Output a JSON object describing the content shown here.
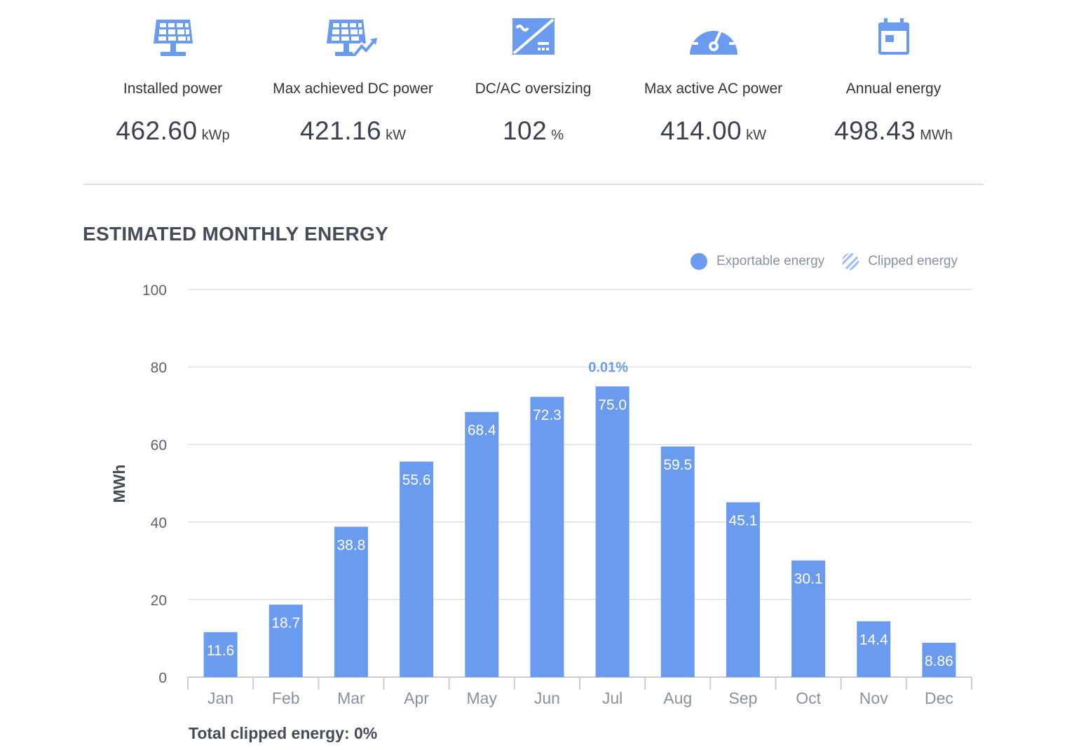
{
  "kpis": [
    {
      "icon": "solar-panel-icon",
      "label": "Installed power",
      "value": "462.60",
      "unit": "kWp"
    },
    {
      "icon": "solar-panel-trend-icon",
      "label": "Max achieved DC power",
      "value": "421.16",
      "unit": "kW"
    },
    {
      "icon": "dc-ac-converter-icon",
      "label": "DC/AC oversizing",
      "value": "102",
      "unit": "%"
    },
    {
      "icon": "gauge-icon",
      "label": "Max active AC power",
      "value": "414.00",
      "unit": "kW"
    },
    {
      "icon": "calendar-icon",
      "label": "Annual energy",
      "value": "498.43",
      "unit": "MWh"
    }
  ],
  "colors": {
    "accent": "#6b9bef",
    "grid": "#dcdfe5",
    "text": "#3c4150",
    "muted": "#8a90a0"
  },
  "chart_data": {
    "type": "bar",
    "title": "ESTIMATED MONTHLY ENERGY",
    "xlabel": "",
    "ylabel": "MWh",
    "ylim": [
      0,
      100
    ],
    "yticks": [
      0,
      20,
      40,
      60,
      80,
      100
    ],
    "grid": true,
    "legend_position": "top-right",
    "categories": [
      "Jan",
      "Feb",
      "Mar",
      "Apr",
      "May",
      "Jun",
      "Jul",
      "Aug",
      "Sep",
      "Oct",
      "Nov",
      "Dec"
    ],
    "series": [
      {
        "name": "Exportable energy",
        "values": [
          11.6,
          18.7,
          38.8,
          55.6,
          68.4,
          72.3,
          75.0,
          59.5,
          45.1,
          30.1,
          14.4,
          8.86
        ]
      },
      {
        "name": "Clipped energy",
        "values": [
          0,
          0,
          0,
          0,
          0,
          0,
          0,
          0,
          0,
          0,
          0,
          0
        ]
      }
    ],
    "value_labels": [
      "11.6",
      "18.7",
      "38.8",
      "55.6",
      "68.4",
      "72.3",
      "75.0",
      "59.5",
      "45.1",
      "30.1",
      "14.4",
      "8.86"
    ],
    "annotations": [
      {
        "category": "Jul",
        "text": "0.01%"
      }
    ]
  },
  "legend": {
    "exportable": "Exportable energy",
    "clipped": "Clipped energy"
  },
  "footer": {
    "total_clipped": "Total clipped energy: 0%"
  }
}
